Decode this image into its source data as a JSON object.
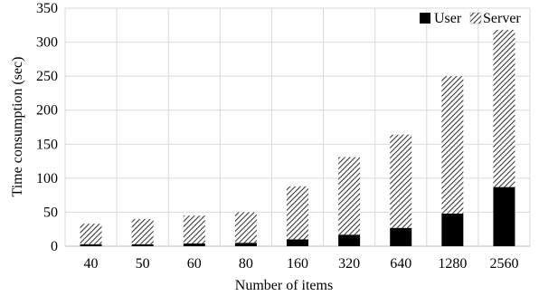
{
  "chart_data": {
    "type": "bar",
    "stacked": true,
    "xlabel": "Number of items",
    "ylabel": "Time consumption (sec)",
    "ylim": [
      0,
      350
    ],
    "yticks": [
      0,
      50,
      100,
      150,
      200,
      250,
      300,
      350
    ],
    "categories": [
      "40",
      "50",
      "60",
      "80",
      "160",
      "320",
      "640",
      "1280",
      "2560"
    ],
    "series": [
      {
        "name": "User",
        "values": [
          3,
          3,
          4,
          5,
          10,
          17,
          27,
          48,
          87
        ],
        "color": "#000000",
        "pattern": "solid"
      },
      {
        "name": "Server",
        "values": [
          30,
          37,
          41,
          45,
          78,
          114,
          137,
          202,
          231
        ],
        "color": "#000000",
        "pattern": "diagonal-hatch"
      }
    ],
    "grid": true,
    "legend": "top-right"
  }
}
